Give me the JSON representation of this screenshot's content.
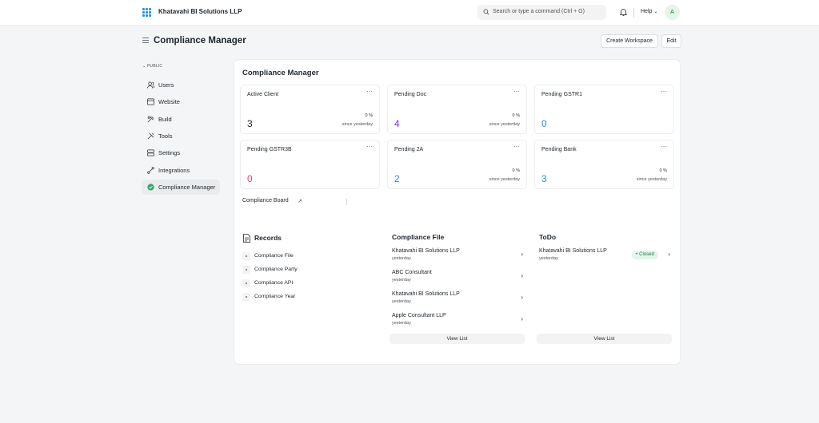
{
  "topbar": {
    "brand": "Khatavahi BI Solutions LLP",
    "search_placeholder": "Search or type a command (Ctrl + G)",
    "help": "Help",
    "avatar": "A"
  },
  "header": {
    "title": "Compliance Manager",
    "create_workspace": "Create Workspace",
    "edit": "Edit"
  },
  "sidebar": {
    "section": "PUBLIC",
    "items": [
      {
        "label": "Users",
        "icon": "users-icon"
      },
      {
        "label": "Website",
        "icon": "website-icon"
      },
      {
        "label": "Build",
        "icon": "build-icon"
      },
      {
        "label": "Tools",
        "icon": "tools-icon"
      },
      {
        "label": "Settings",
        "icon": "settings-icon"
      },
      {
        "label": "Integrations",
        "icon": "integrations-icon"
      },
      {
        "label": "Compliance Manager",
        "icon": "check-circle-icon"
      }
    ]
  },
  "main": {
    "title": "Compliance Manager",
    "cards": [
      {
        "title": "Active Client",
        "value": "3",
        "pct": "0 %",
        "since": "since yesterday",
        "color": "#1f272e"
      },
      {
        "title": "Pending Doc",
        "value": "4",
        "pct": "0 %",
        "since": "since yesterday",
        "color": "#7c2bd8"
      },
      {
        "title": "Pending GSTR1",
        "value": "0",
        "pct": "",
        "since": "",
        "color": "#2490ef"
      },
      {
        "title": "Pending GSTR3B",
        "value": "0",
        "pct": "",
        "since": "",
        "color": "#e2466e"
      },
      {
        "title": "Pending 2A",
        "value": "2",
        "pct": "0 %",
        "since": "since yesterday",
        "color": "#2490ef"
      },
      {
        "title": "Pending Bank",
        "value": "3",
        "pct": "0 %",
        "since": "since yesterday",
        "color": "#2490ef"
      }
    ],
    "board_link": "Compliance Board",
    "records": {
      "title": "Records",
      "items": [
        "Compliance File",
        "Compliance Party",
        "Compliance API",
        "Compliance Year"
      ]
    },
    "compliance_file": {
      "title": "Compliance File",
      "items": [
        {
          "name": "Khatavahi BI Solutions LLP",
          "date": "yesterday"
        },
        {
          "name": "ABC Consultant",
          "date": "yesterday"
        },
        {
          "name": "Khatavahi BI Solutions LLP",
          "date": "yesterday"
        },
        {
          "name": "Apple Consultant LLP",
          "date": "yesterday"
        }
      ],
      "view_list": "View List"
    },
    "todo": {
      "title": "ToDo",
      "items": [
        {
          "name": "Khatavahi BI Solutions LLP",
          "date": "yesterday",
          "status": "Closed"
        }
      ],
      "view_list": "View List"
    }
  }
}
